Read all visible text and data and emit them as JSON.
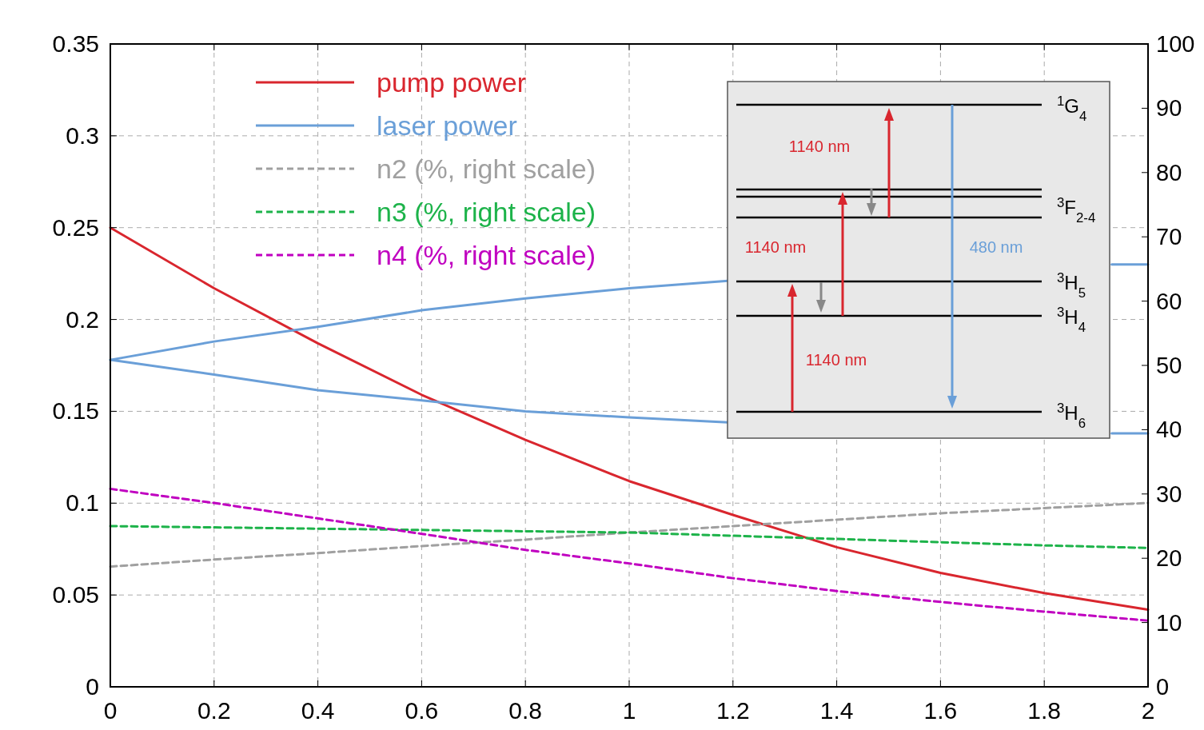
{
  "chart_data": {
    "type": "line",
    "xlim": [
      0,
      2
    ],
    "xticks": [
      0,
      0.2,
      0.4,
      0.6,
      0.8,
      1,
      1.2,
      1.4,
      1.6,
      1.8,
      2
    ],
    "ylim": [
      0,
      0.35
    ],
    "yticks": [
      0,
      0.05,
      0.1,
      0.15,
      0.2,
      0.25,
      0.3,
      0.35
    ],
    "y2lim": [
      0,
      100
    ],
    "y2ticks": [
      0,
      10,
      20,
      30,
      40,
      50,
      60,
      70,
      80,
      90,
      100
    ],
    "grid": true,
    "legend": "top left",
    "x": [
      0,
      0.2,
      0.4,
      0.6,
      0.8,
      1,
      1.2,
      1.4,
      1.6,
      1.8,
      2
    ],
    "series": [
      {
        "name": "pump power",
        "color": "#d9262e",
        "values": [
          0.25,
          0.217,
          0.187,
          0.159,
          0.1345,
          0.112,
          0.0936,
          0.076,
          0.062,
          0.051,
          0.042
        ]
      },
      {
        "name": "laser power",
        "color": "#6a9fd8",
        "x": [
          0,
          0.2,
          0.4,
          0.6,
          0.8,
          1,
          1.19,
          1.5,
          1.93,
          2
        ],
        "values": [
          0.178,
          0.188,
          0.196,
          0.205,
          0.2115,
          0.217,
          0.221,
          null,
          0.23,
          0.23
        ]
      },
      {
        "color": "#6a9fd8",
        "x": [
          0,
          0.2,
          0.4,
          0.6,
          0.8,
          1,
          1.19,
          1.5,
          1.93,
          2
        ],
        "values": [
          0.178,
          0.17,
          0.1615,
          0.156,
          0.15,
          0.1467,
          0.144,
          null,
          0.138,
          0.138
        ]
      },
      {
        "name": "n2 (%, right scale)",
        "color": "#a0a0a0",
        "axis": "y2",
        "line_style": "dashed",
        "values": [
          18.7,
          19.8,
          20.8,
          21.9,
          22.9,
          24.0,
          25.0,
          26.0,
          27.0,
          27.8,
          28.6
        ]
      },
      {
        "name": "n3 (%, right scale)",
        "color": "#1db34a",
        "axis": "y2",
        "line_style": "dashed",
        "values": [
          25.0,
          24.8,
          24.6,
          24.4,
          24.2,
          24.0,
          23.5,
          23.0,
          22.5,
          22.0,
          21.6
        ]
      },
      {
        "name": "n4 (%, right scale)",
        "color": "#c000c0",
        "axis": "y2",
        "line_style": "dashed",
        "values": [
          30.8,
          28.6,
          26.2,
          23.8,
          21.3,
          19.2,
          16.9,
          14.9,
          13.2,
          11.7,
          10.3
        ]
      }
    ],
    "annotations": [
      "$^{1}$G$_{4}$",
      "$^{3}$F$_{2-4}$",
      "$^{3}$H$_{5}$",
      "$^{3}$H$_{4}$",
      "$^{3}$H$_{6}$",
      "1140 nm",
      "1140 nm",
      "1140 nm",
      "480 nm"
    ]
  }
}
